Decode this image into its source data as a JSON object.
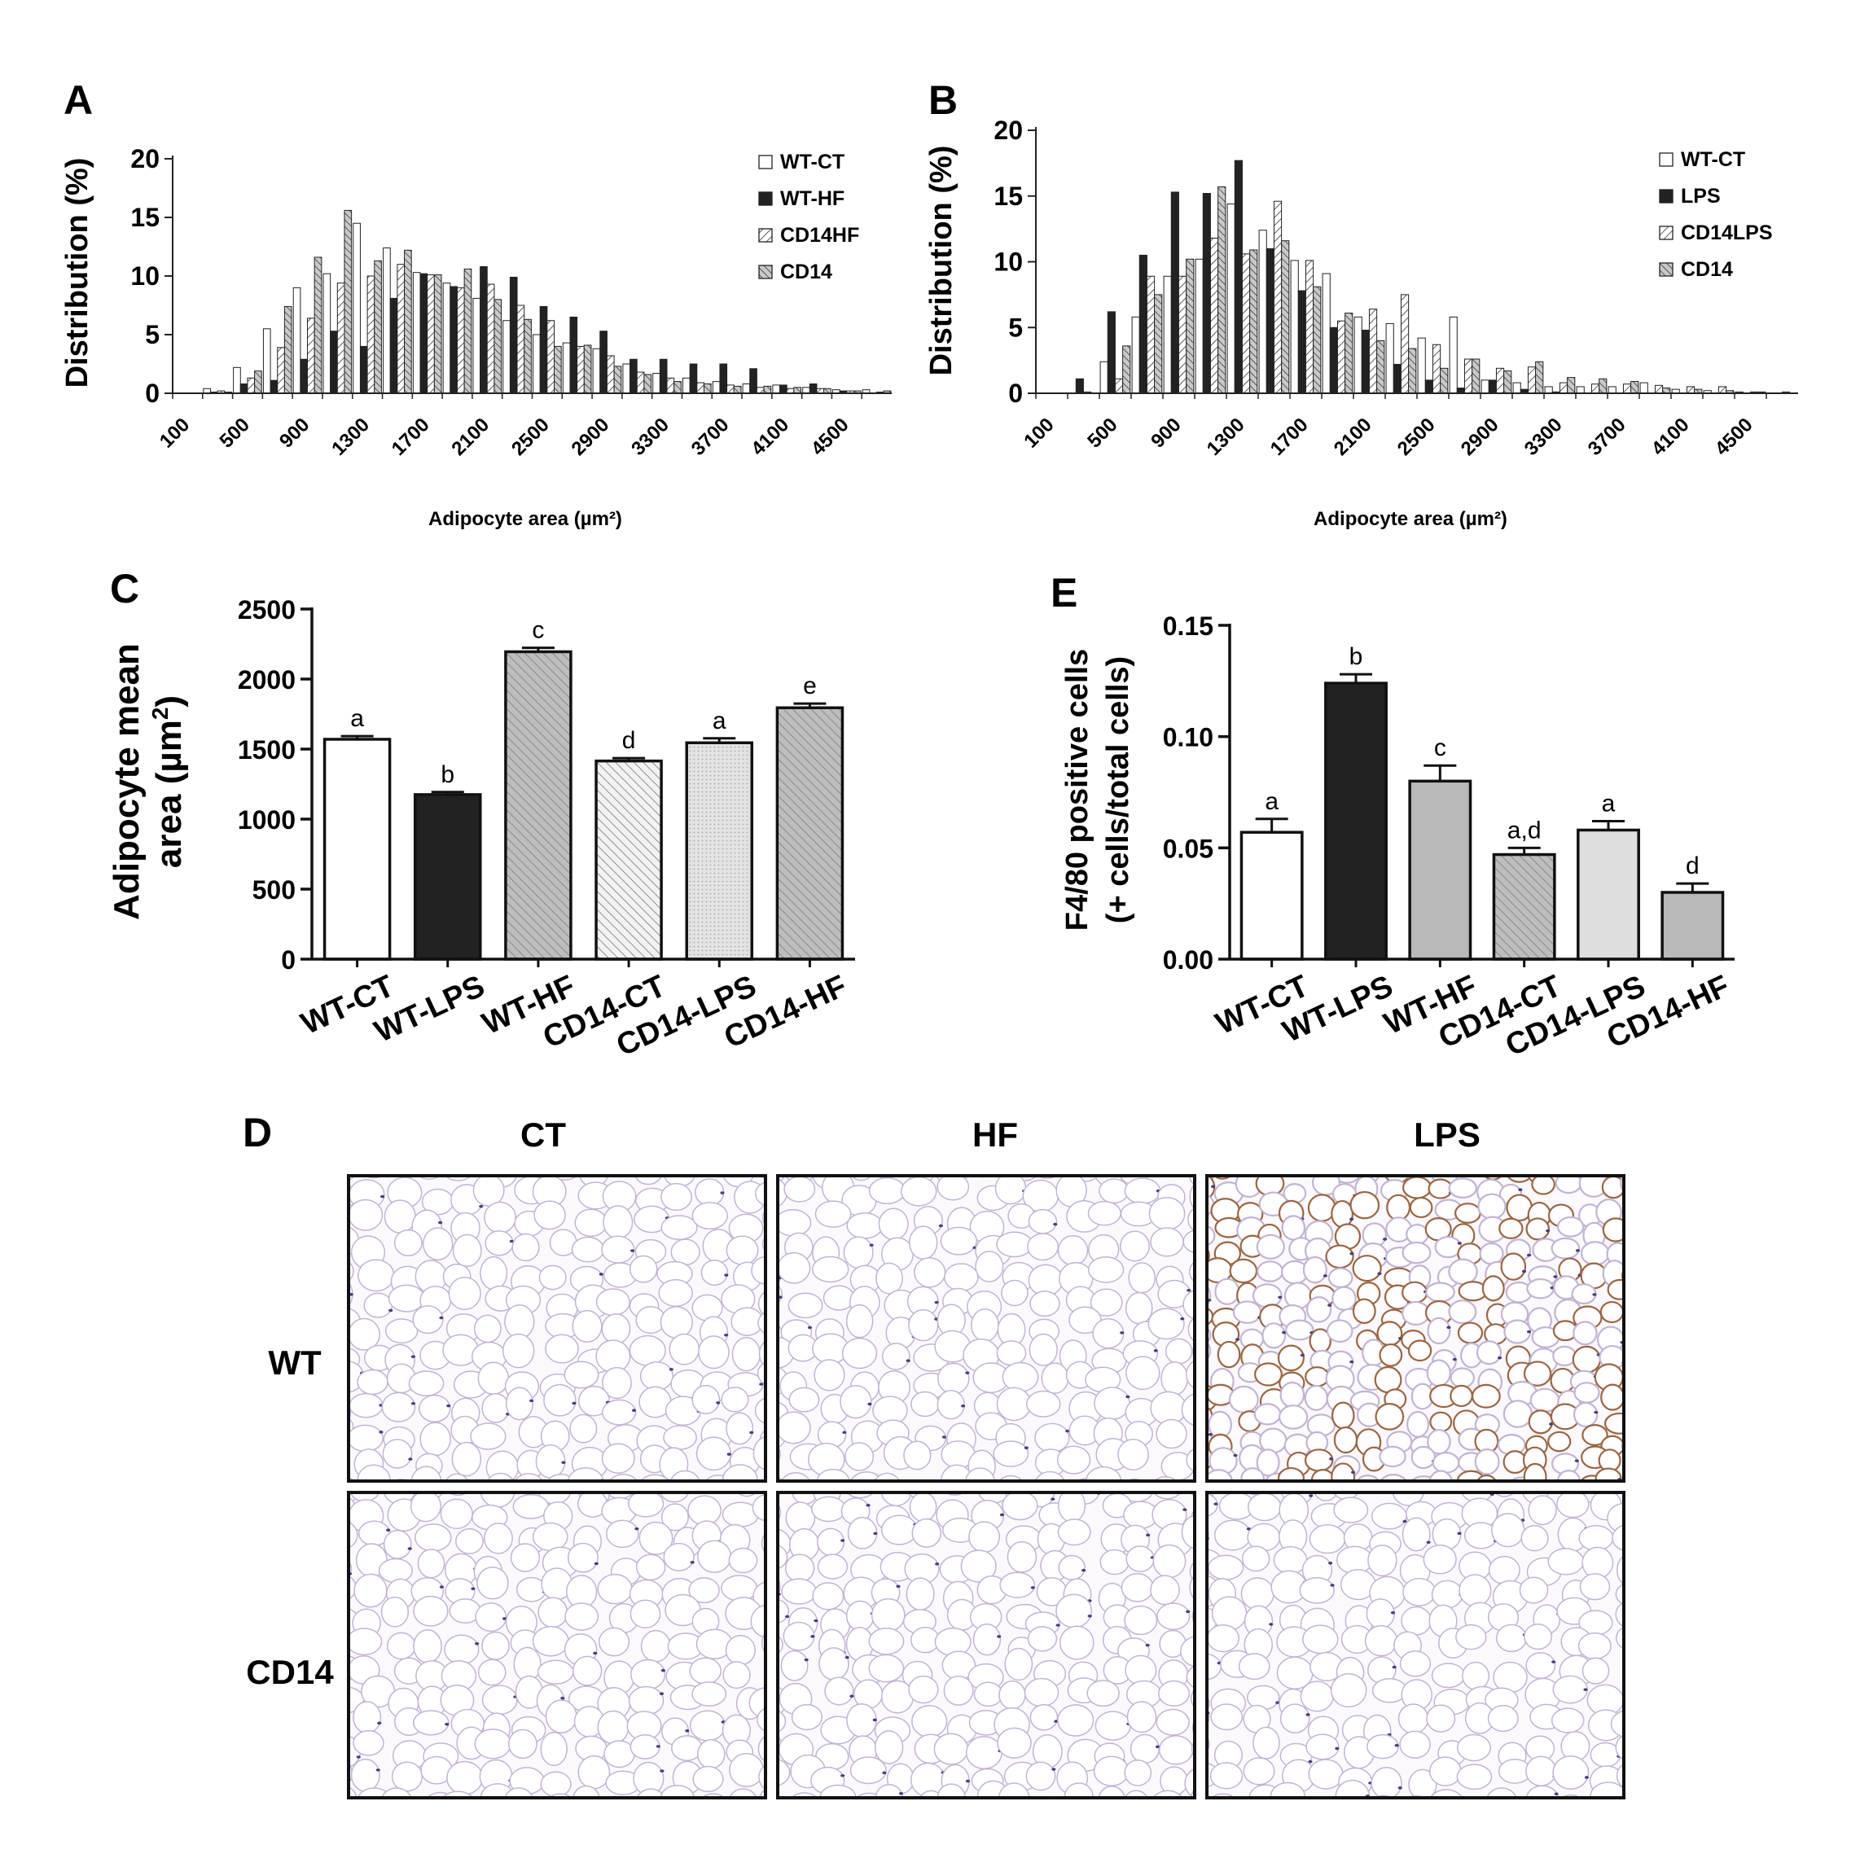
{
  "panels": {
    "A": "A",
    "B": "B",
    "C": "C",
    "D": "D",
    "E": "E"
  },
  "micrograph": {
    "columns": [
      "CT",
      "HF",
      "LPS"
    ],
    "rows": [
      "WT",
      "CD14"
    ]
  },
  "colors": {
    "white_bar": "#ffffff",
    "black_bar": "#222222",
    "gray_bar": "#b9b9b9",
    "light_gray_bar": "#dedede",
    "tissue": "#fbf9fc",
    "wall": "#c4b3d6",
    "nuclei": "#4a3d80",
    "stain": "#a0643c"
  },
  "chart_data": [
    {
      "id": "A",
      "type": "bar",
      "ylabel": "Distribution (%)",
      "xlabel": "Adipocyte area (µm²)",
      "ylim": [
        0,
        20
      ],
      "yticks": [
        0,
        5,
        10,
        15,
        20
      ],
      "xtick_labels": [
        "100",
        "500",
        "900",
        "1300",
        "1700",
        "2100",
        "2500",
        "2900",
        "3300",
        "3700",
        "4100",
        "4500"
      ],
      "categories": [
        100,
        300,
        500,
        700,
        900,
        1100,
        1300,
        1500,
        1700,
        1900,
        2100,
        2300,
        2500,
        2700,
        2900,
        3100,
        3300,
        3500,
        3700,
        3900,
        4100,
        4300,
        4500,
        4700
      ],
      "legend_position": "top-right",
      "series": [
        {
          "name": "WT-CT",
          "pattern": "white",
          "values": [
            0,
            0.4,
            2.2,
            5.5,
            9,
            10.2,
            14.5,
            12.4,
            10.3,
            9.4,
            8.1,
            6.2,
            5.0,
            4.3,
            3.8,
            2.5,
            1.7,
            1.3,
            1.0,
            0.8,
            0.7,
            0.5,
            0.3,
            0.3
          ]
        },
        {
          "name": "WT-HF",
          "pattern": "black",
          "values": [
            0,
            0.1,
            0.8,
            1.1,
            2.9,
            5.3,
            4.0,
            8.1,
            10.2,
            9.1,
            10.8,
            9.9,
            7.4,
            6.5,
            5.3,
            2.9,
            2.9,
            2.5,
            2.5,
            2.1,
            0.7,
            0.8,
            0.2,
            0
          ]
        },
        {
          "name": "CD14HF",
          "pattern": "hatch",
          "values": [
            0,
            0.2,
            1.3,
            3.9,
            6.4,
            9.4,
            10.0,
            11.0,
            10.1,
            9.0,
            9.3,
            7.5,
            6.2,
            4.0,
            3.2,
            1.8,
            1.3,
            0.9,
            0.7,
            0.5,
            0.4,
            0.4,
            0.2,
            0.1
          ]
        },
        {
          "name": "CD14",
          "pattern": "crosshatch",
          "values": [
            0,
            0.1,
            1.9,
            7.4,
            11.6,
            15.6,
            11.3,
            12.2,
            10.1,
            10.6,
            8.0,
            6.3,
            4.0,
            4.1,
            2.3,
            1.6,
            1.0,
            0.8,
            0.6,
            0.6,
            0.5,
            0.4,
            0.2,
            0.2
          ]
        }
      ]
    },
    {
      "id": "B",
      "type": "bar",
      "ylabel": "Distribution (%)",
      "xlabel": "Adipocyte area (µm²)",
      "ylim": [
        0,
        20
      ],
      "yticks": [
        0,
        5,
        10,
        15,
        20
      ],
      "xtick_labels": [
        "100",
        "500",
        "900",
        "1300",
        "1700",
        "2100",
        "2500",
        "2900",
        "3300",
        "3700",
        "4100",
        "4500"
      ],
      "categories": [
        100,
        300,
        500,
        700,
        900,
        1100,
        1300,
        1500,
        1700,
        1900,
        2100,
        2300,
        2500,
        2700,
        2900,
        3100,
        3300,
        3500,
        3700,
        3900,
        4100,
        4300,
        4500,
        4700
      ],
      "legend_position": "top-right",
      "series": [
        {
          "name": "WT-CT",
          "pattern": "white",
          "values": [
            0,
            0,
            2.4,
            5.8,
            8.9,
            10.2,
            14.4,
            12.4,
            10.1,
            9.1,
            5.8,
            5.3,
            4.2,
            5.8,
            1.0,
            0.8,
            0.5,
            0.5,
            0.5,
            0.8,
            0.3,
            0.2,
            0.1,
            0
          ]
        },
        {
          "name": "LPS",
          "pattern": "black",
          "values": [
            0,
            1.1,
            6.2,
            10.5,
            15.3,
            15.2,
            17.7,
            11.0,
            7.8,
            5.0,
            4.8,
            2.2,
            1.0,
            0.4,
            1.0,
            0.3,
            0.1,
            0,
            0,
            0,
            0,
            0,
            0,
            0
          ]
        },
        {
          "name": "CD14LPS",
          "pattern": "hatch",
          "values": [
            0,
            0.1,
            1.1,
            8.9,
            8.9,
            11.8,
            10.6,
            14.6,
            10.1,
            5.5,
            6.4,
            7.5,
            3.7,
            2.6,
            1.9,
            2.0,
            0.8,
            0.7,
            0.7,
            0.6,
            0.5,
            0.5,
            0.1,
            0.1
          ]
        },
        {
          "name": "CD14",
          "pattern": "crosshatch",
          "values": [
            0,
            0,
            3.6,
            7.5,
            10.2,
            15.7,
            10.9,
            11.6,
            8.1,
            6.1,
            4.0,
            3.4,
            1.9,
            2.6,
            1.7,
            2.4,
            1.2,
            1.1,
            0.9,
            0.4,
            0.3,
            0.2,
            0.1,
            0
          ]
        }
      ]
    },
    {
      "id": "C",
      "type": "bar",
      "ylabel_line1": "Adipocyte mean",
      "ylabel_line2": "area (µm",
      "ylabel_sup": "2",
      "ylabel_end": ")",
      "ylim": [
        0,
        2500
      ],
      "yticks": [
        0,
        500,
        1000,
        1500,
        2000,
        2500
      ],
      "categories": [
        "WT-CT",
        "WT-LPS",
        "WT-HF",
        "CD14-CT",
        "CD14-LPS",
        "CD14-HF"
      ],
      "values": [
        1570,
        1175,
        2195,
        1415,
        1545,
        1795
      ],
      "errors": [
        22,
        18,
        28,
        20,
        32,
        30
      ],
      "significance": [
        "a",
        "b",
        "c",
        "d",
        "a",
        "e"
      ],
      "patterns": [
        "white",
        "black",
        "gray-diag",
        "white-diag",
        "light-dots",
        "gray-diag"
      ]
    },
    {
      "id": "E",
      "type": "bar",
      "ylabel_line1": "F4/80 positive cells",
      "ylabel_line2": "(+ cells/total cells)",
      "ylim": [
        0,
        0.15
      ],
      "yticks": [
        "0.00",
        "0.05",
        "0.10",
        "0.15"
      ],
      "categories": [
        "WT-CT",
        "WT-LPS",
        "WT-HF",
        "CD14-CT",
        "CD14-LPS",
        "CD14-HF"
      ],
      "values": [
        0.057,
        0.124,
        0.08,
        0.047,
        0.058,
        0.03
      ],
      "errors": [
        0.006,
        0.004,
        0.007,
        0.003,
        0.004,
        0.004
      ],
      "significance": [
        "a",
        "b",
        "c",
        "a,d",
        "a",
        "d"
      ],
      "patterns": [
        "white",
        "black",
        "gray",
        "gray-diag",
        "light",
        "gray"
      ]
    }
  ]
}
